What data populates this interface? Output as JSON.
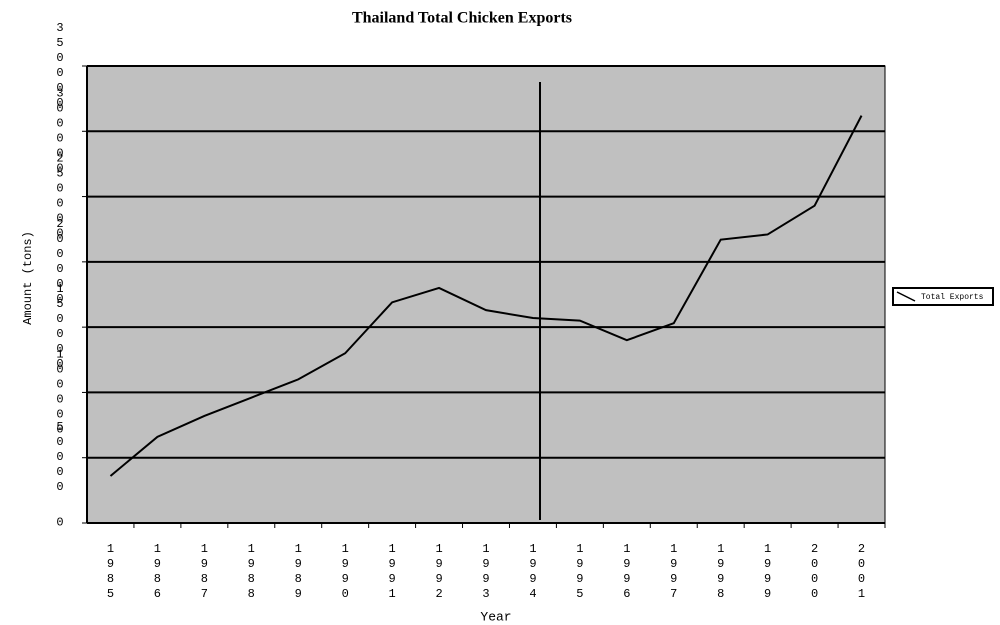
{
  "chart_data": {
    "type": "line",
    "title": "Thailand Total Chicken Exports",
    "x_label": "Year",
    "y_label": "Amount (tons)",
    "categories": [
      "1985",
      "1986",
      "1987",
      "1988",
      "1989",
      "1990",
      "1991",
      "1992",
      "1993",
      "1994",
      "1995",
      "1996",
      "1997",
      "1998",
      "1999",
      "2000",
      "2001"
    ],
    "series": [
      {
        "name": "Total Exports",
        "color": "#000000",
        "values": [
          36000,
          66000,
          82000,
          96000,
          110000,
          130000,
          169000,
          180000,
          163000,
          157000,
          155000,
          140000,
          153000,
          217000,
          221000,
          243000,
          312000
        ]
      }
    ],
    "ylim": [
      0,
      350000
    ],
    "yticks": [
      0,
      50000,
      100000,
      150000,
      200000,
      250000,
      300000,
      350000
    ],
    "grid": true,
    "legend": "right",
    "plot_background": "#c0c0c0"
  }
}
